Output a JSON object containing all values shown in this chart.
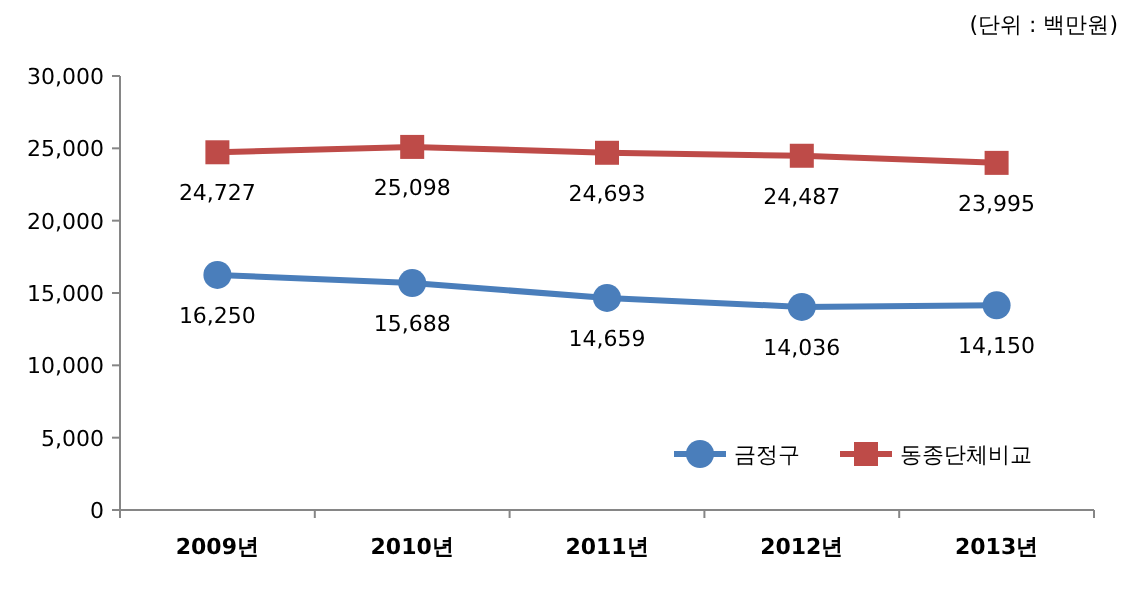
{
  "chart_data": {
    "type": "line",
    "categories": [
      "2009년",
      "2010년",
      "2011년",
      "2012년",
      "2013년"
    ],
    "series": [
      {
        "name": "금정구",
        "color": "#4a7ebb",
        "values": [
          16250,
          15688,
          14659,
          14036,
          14150
        ],
        "value_labels": [
          "16,250",
          "15,688",
          "14,659",
          "14,036",
          "14,150"
        ],
        "marker": "circle"
      },
      {
        "name": "동종단체비교",
        "color": "#be4b48",
        "values": [
          24727,
          25098,
          24693,
          24487,
          23995
        ],
        "value_labels": [
          "24,727",
          "25,098",
          "24,693",
          "24,487",
          "23,995"
        ],
        "marker": "square"
      }
    ],
    "ylim": [
      0,
      30000
    ],
    "yticks": [
      {
        "value": 0,
        "label": "0"
      },
      {
        "value": 5000,
        "label": "5,000"
      },
      {
        "value": 10000,
        "label": "10,000"
      },
      {
        "value": 15000,
        "label": "15,000"
      },
      {
        "value": 20000,
        "label": "20,000"
      },
      {
        "value": 25000,
        "label": "25,000"
      },
      {
        "value": 30000,
        "label": "30,000"
      }
    ],
    "legend": "bottom right",
    "grid": false,
    "annotations": [
      "(단위 : 백만원)"
    ]
  }
}
